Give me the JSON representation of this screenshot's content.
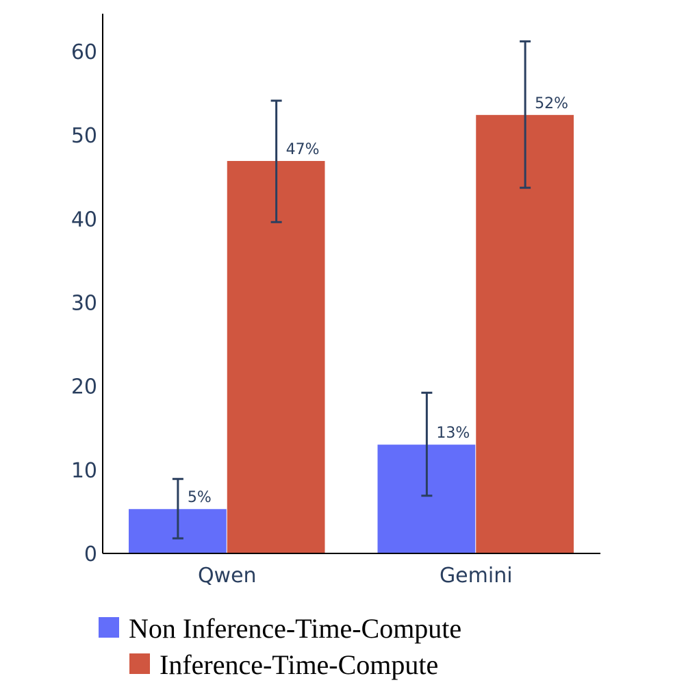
{
  "chart_data": {
    "type": "bar",
    "categories": [
      "Qwen",
      "Gemini"
    ],
    "series": [
      {
        "name": "Non Inference-Time-Compute",
        "color": "#636efa",
        "values": [
          5.3,
          13.0
        ],
        "error_low": [
          1.8,
          6.9
        ],
        "error_high": [
          8.9,
          19.2
        ],
        "labels": [
          "5%",
          "13%"
        ]
      },
      {
        "name": "Inference-Time-Compute",
        "color": "#d05640",
        "values": [
          46.9,
          52.4
        ],
        "error_low": [
          39.6,
          43.7
        ],
        "error_high": [
          54.1,
          61.2
        ],
        "labels": [
          "47%",
          "52%"
        ]
      }
    ],
    "ylim": [
      0,
      64.5
    ],
    "yticks": [
      0,
      10,
      20,
      30,
      40,
      50,
      60
    ],
    "xlabel": "",
    "ylabel": "",
    "title": "",
    "error_bar_color": "#2a3f5f",
    "grid": false,
    "legend": "bottom"
  }
}
